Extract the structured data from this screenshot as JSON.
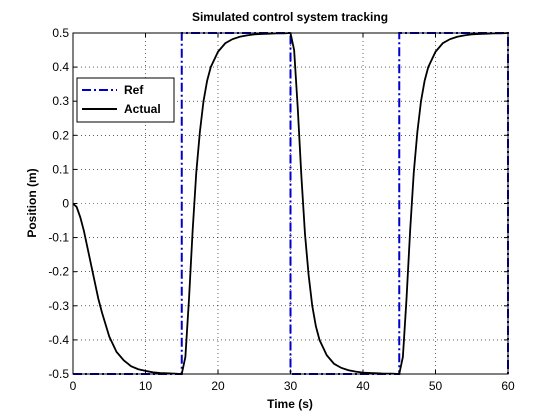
{
  "chart_data": {
    "type": "line",
    "title": "Simulated control system tracking",
    "xlabel": "Time (s)",
    "ylabel": "Position (m)",
    "xlim": [
      0,
      60
    ],
    "ylim": [
      -0.5,
      0.5
    ],
    "xticks": [
      0,
      10,
      20,
      30,
      40,
      50,
      60
    ],
    "xtick_labels": [
      "0",
      "10",
      "20",
      "30",
      "40",
      "50",
      "60"
    ],
    "yticks": [
      -0.5,
      -0.4,
      -0.3,
      -0.2,
      -0.1,
      0,
      0.1,
      0.2,
      0.3,
      0.4,
      0.5
    ],
    "ytick_labels": [
      "-0.5",
      "-0.4",
      "-0.3",
      "-0.2",
      "-0.1",
      "0",
      "0.1",
      "0.2",
      "0.3",
      "0.4",
      "0.5"
    ],
    "grid": true,
    "legend_position": "upper-left",
    "series": [
      {
        "name": "Ref",
        "style": "dash-dot",
        "color": "#0000cc",
        "x": [
          0,
          15,
          15,
          30,
          30,
          45,
          45,
          60,
          60
        ],
        "y": [
          -0.5,
          -0.5,
          0.5,
          0.5,
          -0.5,
          -0.5,
          0.5,
          0.5,
          -0.5
        ]
      },
      {
        "name": "Actual",
        "style": "solid",
        "color": "#000000",
        "x": [
          0,
          0.5,
          1,
          1.5,
          2,
          2.5,
          3,
          3.5,
          4,
          5,
          6,
          7,
          8,
          9,
          10,
          11,
          12,
          13,
          14,
          15,
          15.5,
          16,
          16.5,
          17,
          17.5,
          18,
          18.5,
          19,
          20,
          21,
          22,
          23,
          24,
          25,
          26,
          27,
          28,
          29,
          30,
          30.5,
          31,
          31.5,
          32,
          32.5,
          33,
          33.5,
          34,
          35,
          36,
          37,
          38,
          39,
          40,
          41,
          42,
          43,
          44,
          45,
          45.5,
          46,
          46.5,
          47,
          47.5,
          48,
          48.5,
          49,
          50,
          51,
          52,
          53,
          54,
          55,
          56,
          57,
          58,
          59,
          60
        ],
        "y": [
          0,
          -0.01,
          -0.04,
          -0.08,
          -0.13,
          -0.18,
          -0.23,
          -0.28,
          -0.32,
          -0.39,
          -0.435,
          -0.46,
          -0.477,
          -0.486,
          -0.491,
          -0.495,
          -0.497,
          -0.498,
          -0.499,
          -0.5,
          -0.45,
          -0.28,
          -0.08,
          0.09,
          0.21,
          0.3,
          0.36,
          0.4,
          0.445,
          0.47,
          0.482,
          0.489,
          0.493,
          0.496,
          0.497,
          0.498,
          0.499,
          0.499,
          0.5,
          0.45,
          0.28,
          0.08,
          -0.09,
          -0.21,
          -0.3,
          -0.36,
          -0.4,
          -0.445,
          -0.47,
          -0.482,
          -0.489,
          -0.493,
          -0.496,
          -0.497,
          -0.498,
          -0.499,
          -0.499,
          -0.5,
          -0.45,
          -0.28,
          -0.08,
          0.09,
          0.21,
          0.3,
          0.36,
          0.4,
          0.445,
          0.47,
          0.482,
          0.489,
          0.493,
          0.496,
          0.497,
          0.498,
          0.499,
          0.499,
          0.5
        ]
      }
    ]
  }
}
